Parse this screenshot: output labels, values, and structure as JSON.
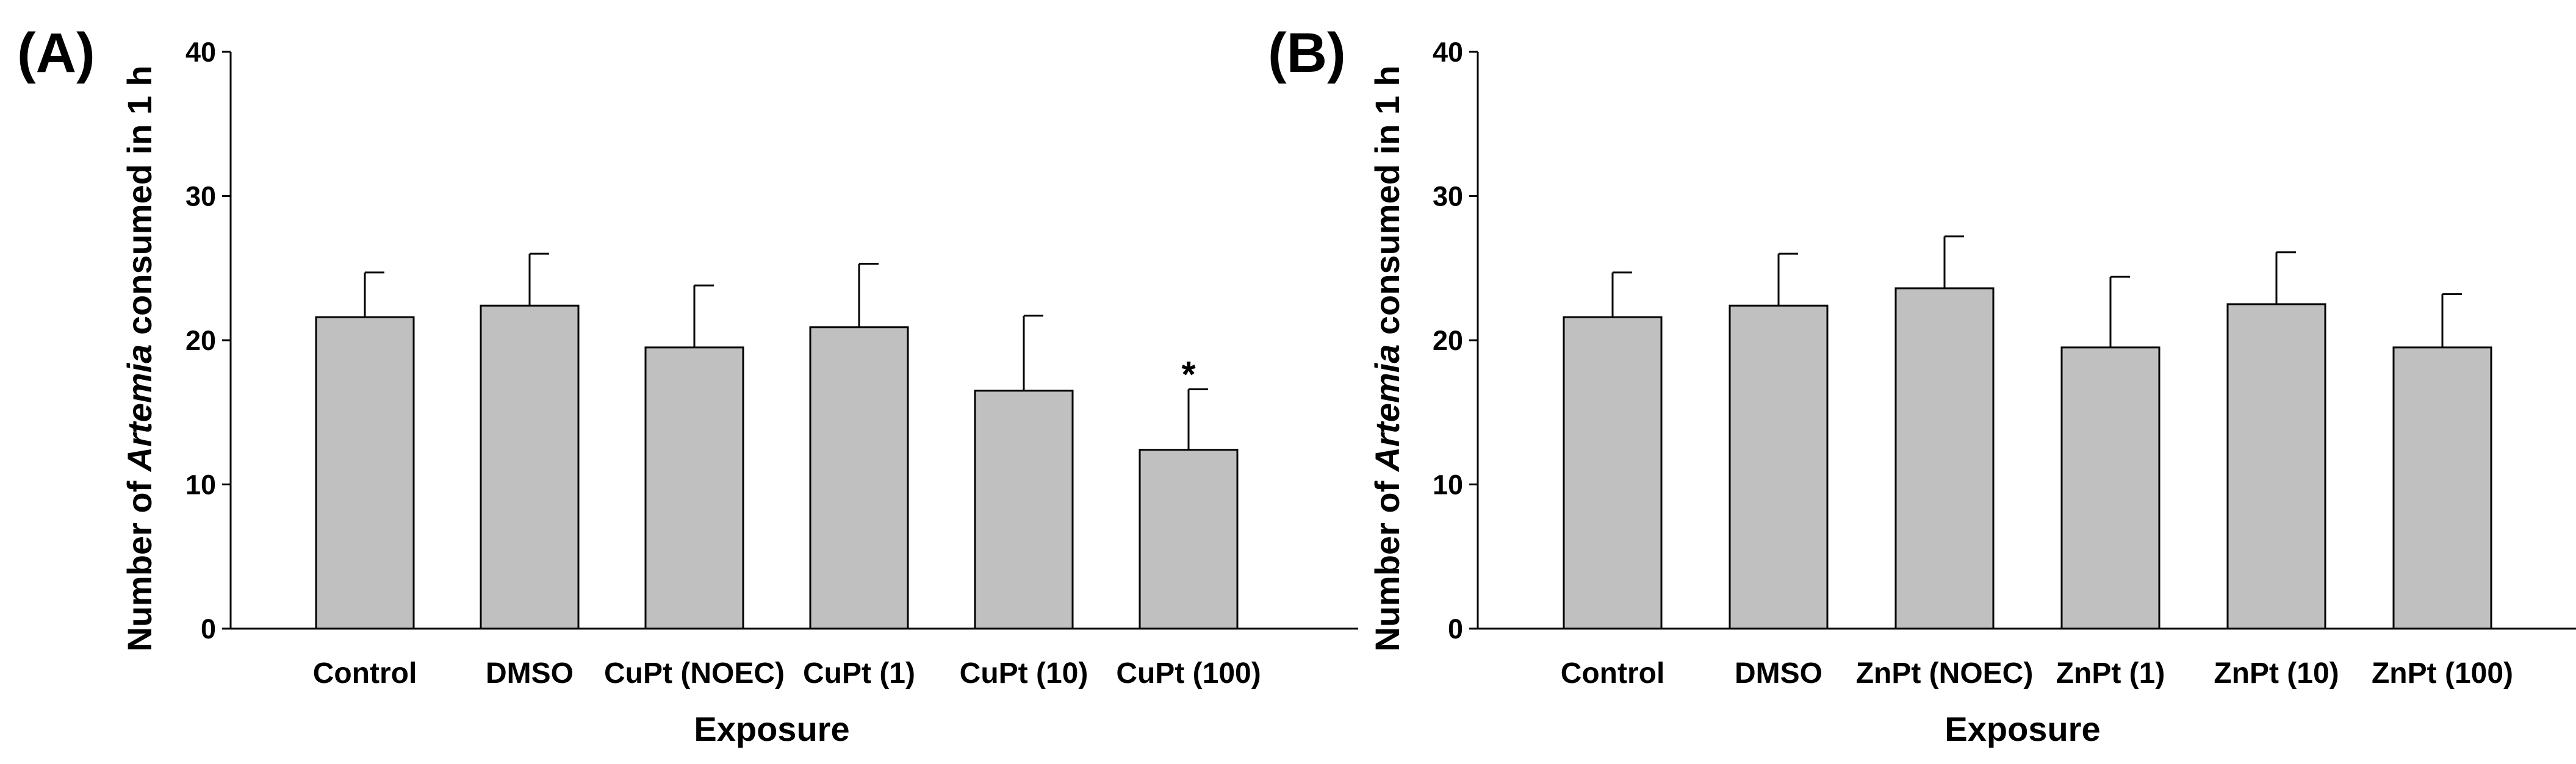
{
  "chart_data": [
    {
      "type": "bar",
      "panel_label": "(A)",
      "categories": [
        "Control",
        "DMSO",
        "CuPt (NOEC)",
        "CuPt (1)",
        "CuPt (10)",
        "CuPt (100)"
      ],
      "values": [
        21.6,
        22.4,
        19.5,
        20.9,
        16.5,
        12.4
      ],
      "error": [
        3.1,
        3.6,
        4.3,
        4.4,
        5.2,
        4.2
      ],
      "annotations": [
        "",
        "",
        "",
        "",
        "",
        "*"
      ],
      "xlabel": "Exposure",
      "ylabel": {
        "pre": "Number of ",
        "italic": "Artemia",
        "post": " consumed in 1 h"
      },
      "ylim": [
        0,
        40
      ],
      "yticks": [
        0,
        10,
        20,
        30,
        40
      ],
      "bar_color": "#c0c0c0",
      "edge_color": "#000000",
      "grid": false
    },
    {
      "type": "bar",
      "panel_label": "(B)",
      "categories": [
        "Control",
        "DMSO",
        "ZnPt (NOEC)",
        "ZnPt (1)",
        "ZnPt (10)",
        "ZnPt (100)"
      ],
      "values": [
        21.6,
        22.4,
        23.6,
        19.5,
        22.5,
        19.5
      ],
      "error": [
        3.1,
        3.6,
        3.6,
        4.9,
        3.6,
        3.7
      ],
      "annotations": [
        "",
        "",
        "",
        "",
        "",
        ""
      ],
      "xlabel": "Exposure",
      "ylabel": {
        "pre": "Number of ",
        "italic": "Artemia",
        "post": " consumed in 1 h"
      },
      "ylim": [
        0,
        40
      ],
      "yticks": [
        0,
        10,
        20,
        30,
        40
      ],
      "bar_color": "#c0c0c0",
      "edge_color": "#000000",
      "grid": false
    }
  ]
}
